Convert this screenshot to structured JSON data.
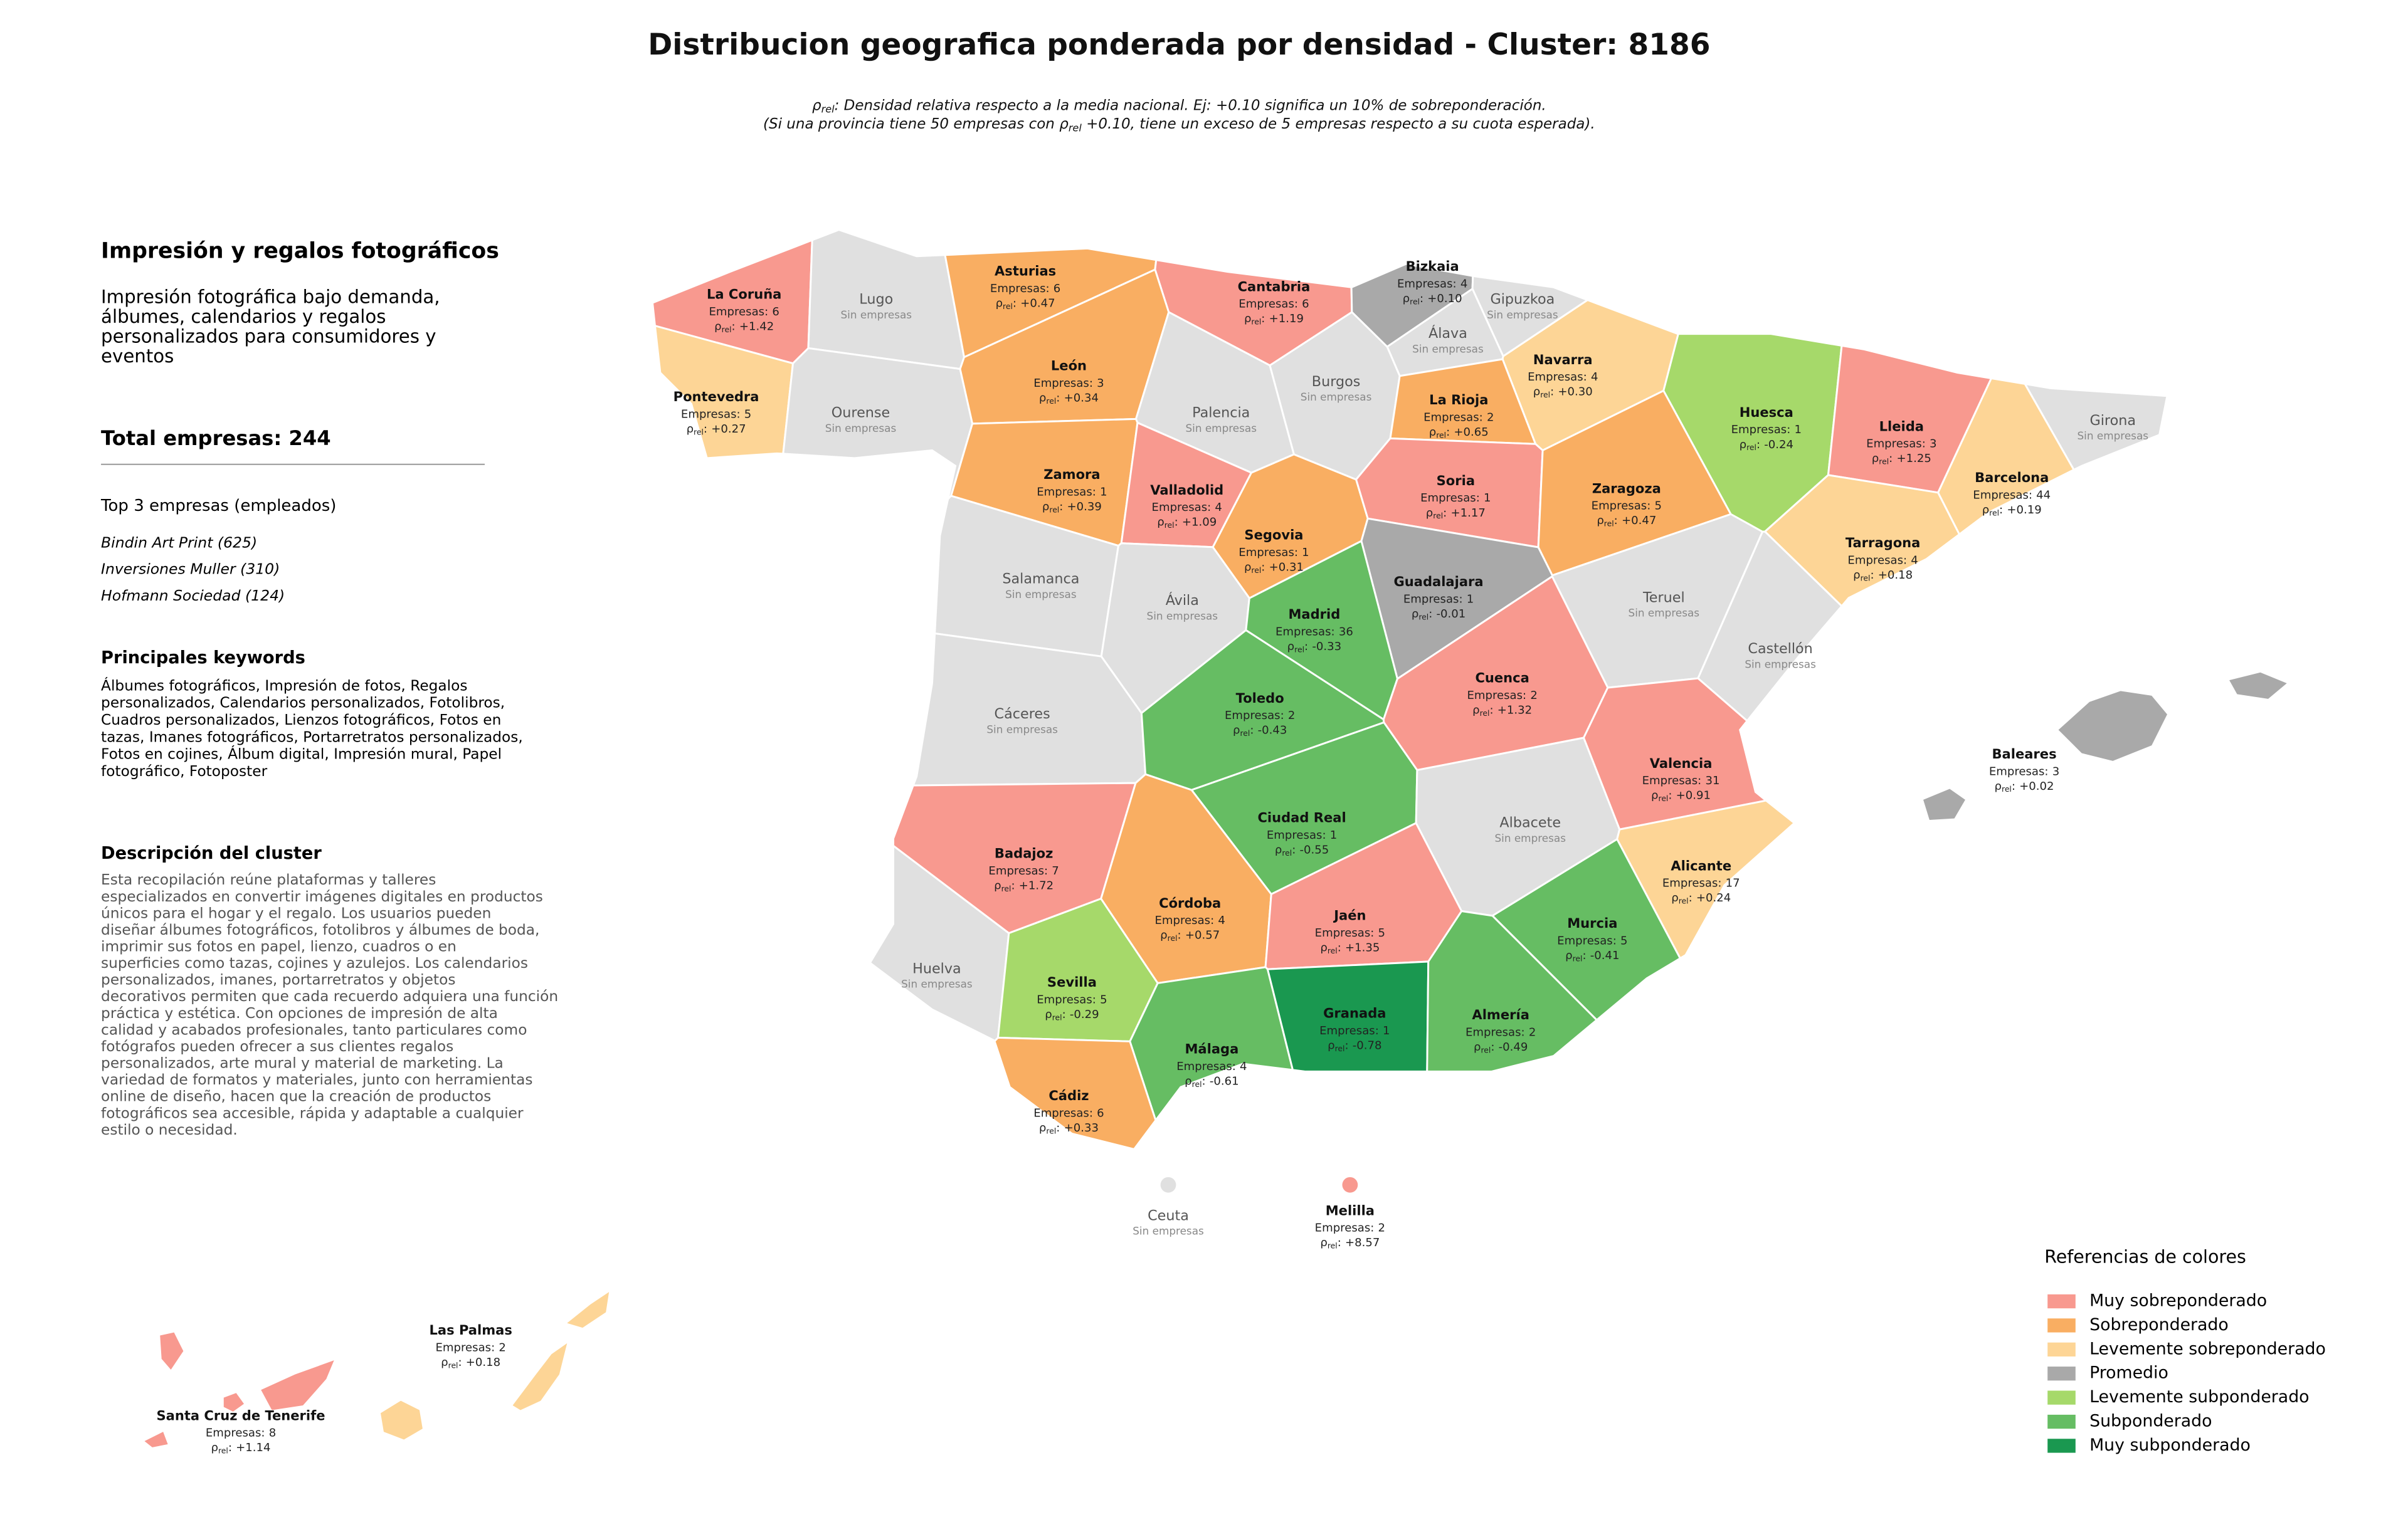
{
  "title": "Distribucion geografica ponderada por densidad - Cluster: 8186",
  "subtitle": [
    {
      "pre": "ρ",
      "sub": "rel",
      "post": ": Densidad relativa respecto a la media nacional. Ej: +0.10 significa un 10% de sobreponderación."
    },
    {
      "pre": "(Si una provincia tiene 50 empresas con ρ",
      "sub": "rel",
      "post": " +0.10, tiene un exceso de 5 empresas respecto a su cuota esperada)."
    }
  ],
  "panel": {
    "heading": "Impresión y regalos fotográficos",
    "description": [
      "Impresión fotográfica bajo demanda,",
      "álbumes, calendarios y regalos",
      "personalizados para consumidores y",
      "eventos"
    ],
    "total": "Total empresas: 244",
    "top_heading": "Top 3 empresas (empleados)",
    "top": [
      "Bindin Art Print (625)",
      "Inversiones Muller (310)",
      "Hofmann Sociedad (124)"
    ],
    "keywords_heading": "Principales keywords",
    "keywords": [
      "Álbumes fotográficos, Impresión de fotos, Regalos",
      "personalizados, Calendarios personalizados, Fotolibros,",
      "Cuadros personalizados, Lienzos fotográficos, Fotos en",
      "tazas, Imanes fotográficos, Portarretratos personalizados,",
      "Fotos en cojines, Álbum digital, Impresión mural, Papel",
      "fotográfico, Fotoposter"
    ],
    "cluster_heading": "Descripción del cluster",
    "cluster_description": [
      "Esta recopilación reúne plataformas y talleres",
      "especializados en convertir imágenes digitales en productos",
      "únicos para el hogar y el regalo. Los usuarios pueden",
      "diseñar álbumes fotográficos, fotolibros y álbumes de boda,",
      "imprimir sus fotos en papel, lienzo, cuadros o en",
      "superficies como tazas, cojines y azulejos. Los calendarios",
      "personalizados, imanes, portarretratos y objetos",
      "decorativos permiten que cada recuerdo adquiera una función",
      "práctica y estética. Con opciones de impresión de alta",
      "calidad y acabados profesionales, tanto particulares como",
      "fotógrafos pueden ofrecer a sus clientes regalos",
      "personalizados, arte mural y material de marketing. La",
      "variedad de formatos y materiales, junto con herramientas",
      "online de diseño, hacen que la creación de productos",
      "fotográficos sea accesible, rápida y adaptable a cualquier",
      "estilo o necesidad."
    ]
  },
  "labels": {
    "empresas": "Empresas:",
    "rho": "ρ",
    "rho_sub": "rel",
    "colon": ":",
    "none": "Sin empresas"
  },
  "provinces": [
    {
      "name": "La Coruña",
      "color": "#f8998f",
      "empresas": 6,
      "rho": 1.42,
      "rho_label": "+1.42"
    },
    {
      "name": "Lugo",
      "color": "#e0e0e0"
    },
    {
      "name": "Asturias",
      "color": "#f9ae62",
      "empresas": 6,
      "rho": 0.47,
      "rho_label": "+0.47"
    },
    {
      "name": "Cantabria",
      "color": "#f8998f",
      "empresas": 6,
      "rho": 1.19,
      "rho_label": "+1.19"
    },
    {
      "name": "Bizkaia",
      "color": "#a9a9a9",
      "empresas": 4,
      "rho": 0.1,
      "rho_label": "+0.10"
    },
    {
      "name": "Gipuzkoa",
      "color": "#e0e0e0"
    },
    {
      "name": "Álava",
      "color": "#e0e0e0"
    },
    {
      "name": "Navarra",
      "color": "#fdd596",
      "empresas": 4,
      "rho": 0.3,
      "rho_label": "+0.30"
    },
    {
      "name": "Pontevedra",
      "color": "#fdd596",
      "empresas": 5,
      "rho": 0.27,
      "rho_label": "+0.27"
    },
    {
      "name": "Ourense",
      "color": "#e0e0e0"
    },
    {
      "name": "León",
      "color": "#f9ae62",
      "empresas": 3,
      "rho": 0.34,
      "rho_label": "+0.34"
    },
    {
      "name": "Palencia",
      "color": "#e0e0e0"
    },
    {
      "name": "Burgos",
      "color": "#e0e0e0"
    },
    {
      "name": "La Rioja",
      "color": "#f9ae62",
      "empresas": 2,
      "rho": 0.65,
      "rho_label": "+0.65"
    },
    {
      "name": "Huesca",
      "color": "#a6d96a",
      "empresas": 1,
      "rho": -0.24,
      "rho_label": "-0.24"
    },
    {
      "name": "Lleida",
      "color": "#f8998f",
      "empresas": 3,
      "rho": 1.25,
      "rho_label": "+1.25"
    },
    {
      "name": "Girona",
      "color": "#e0e0e0"
    },
    {
      "name": "Barcelona",
      "color": "#fdd596",
      "empresas": 44,
      "rho": 0.19,
      "rho_label": "+0.19"
    },
    {
      "name": "Zamora",
      "color": "#f9ae62",
      "empresas": 1,
      "rho": 0.39,
      "rho_label": "+0.39"
    },
    {
      "name": "Valladolid",
      "color": "#f8998f",
      "empresas": 4,
      "rho": 1.09,
      "rho_label": "+1.09"
    },
    {
      "name": "Soria",
      "color": "#f8998f",
      "empresas": 1,
      "rho": 1.17,
      "rho_label": "+1.17"
    },
    {
      "name": "Zaragoza",
      "color": "#f9ae62",
      "empresas": 5,
      "rho": 0.47,
      "rho_label": "+0.47"
    },
    {
      "name": "Segovia",
      "color": "#f9ae62",
      "empresas": 1,
      "rho": 0.31,
      "rho_label": "+0.31"
    },
    {
      "name": "Tarragona",
      "color": "#fdd596",
      "empresas": 4,
      "rho": 0.18,
      "rho_label": "+0.18"
    },
    {
      "name": "Salamanca",
      "color": "#e0e0e0"
    },
    {
      "name": "Ávila",
      "color": "#e0e0e0"
    },
    {
      "name": "Guadalajara",
      "color": "#a9a9a9",
      "empresas": 1,
      "rho": -0.01,
      "rho_label": "-0.01"
    },
    {
      "name": "Madrid",
      "color": "#66bd63",
      "empresas": 36,
      "rho": -0.33,
      "rho_label": "-0.33"
    },
    {
      "name": "Teruel",
      "color": "#e0e0e0"
    },
    {
      "name": "Castellón",
      "color": "#e0e0e0"
    },
    {
      "name": "Cáceres",
      "color": "#e0e0e0"
    },
    {
      "name": "Toledo",
      "color": "#66bd63",
      "empresas": 2,
      "rho": -0.43,
      "rho_label": "-0.43"
    },
    {
      "name": "Cuenca",
      "color": "#f8998f",
      "empresas": 2,
      "rho": 1.32,
      "rho_label": "+1.32"
    },
    {
      "name": "Valencia",
      "color": "#f8998f",
      "empresas": 31,
      "rho": 0.91,
      "rho_label": "+0.91"
    },
    {
      "name": "Badajoz",
      "color": "#f8998f",
      "empresas": 7,
      "rho": 1.72,
      "rho_label": "+1.72"
    },
    {
      "name": "Ciudad Real",
      "color": "#66bd63",
      "empresas": 1,
      "rho": -0.55,
      "rho_label": "-0.55"
    },
    {
      "name": "Albacete",
      "color": "#e0e0e0"
    },
    {
      "name": "Alicante",
      "color": "#fdd596",
      "empresas": 17,
      "rho": 0.24,
      "rho_label": "+0.24"
    },
    {
      "name": "Córdoba",
      "color": "#f9ae62",
      "empresas": 4,
      "rho": 0.57,
      "rho_label": "+0.57"
    },
    {
      "name": "Jaén",
      "color": "#f8998f",
      "empresas": 5,
      "rho": 1.35,
      "rho_label": "+1.35"
    },
    {
      "name": "Murcia",
      "color": "#66bd63",
      "empresas": 5,
      "rho": -0.41,
      "rho_label": "-0.41"
    },
    {
      "name": "Huelva",
      "color": "#e0e0e0"
    },
    {
      "name": "Sevilla",
      "color": "#a6d96a",
      "empresas": 5,
      "rho": -0.29,
      "rho_label": "-0.29"
    },
    {
      "name": "Granada",
      "color": "#1a9850",
      "empresas": 1,
      "rho": -0.78,
      "rho_label": "-0.78"
    },
    {
      "name": "Almería",
      "color": "#66bd63",
      "empresas": 2,
      "rho": -0.49,
      "rho_label": "-0.49"
    },
    {
      "name": "Málaga",
      "color": "#66bd63",
      "empresas": 4,
      "rho": -0.61,
      "rho_label": "-0.61"
    },
    {
      "name": "Cádiz",
      "color": "#f9ae62",
      "empresas": 6,
      "rho": 0.33,
      "rho_label": "+0.33"
    },
    {
      "name": "Baleares",
      "color": "#a9a9a9",
      "empresas": 3,
      "rho": 0.02,
      "rho_label": "+0.02"
    },
    {
      "name": "Ceuta",
      "color": "#e0e0e0"
    },
    {
      "name": "Melilla",
      "color": "#f8998f",
      "empresas": 2,
      "rho": 8.57,
      "rho_label": "+8.57"
    },
    {
      "name": "Las Palmas",
      "color": "#fdd596",
      "empresas": 2,
      "rho": 0.18,
      "rho_label": "+0.18"
    },
    {
      "name": "Santa Cruz de Tenerife",
      "color": "#f8998f",
      "empresas": 8,
      "rho": 1.14,
      "rho_label": "+1.14"
    }
  ],
  "legend": {
    "title": "Referencias de colores",
    "items": [
      {
        "name": "Muy sobreponderado",
        "color": "#f8998f"
      },
      {
        "name": "Sobreponderado",
        "color": "#f9ae62"
      },
      {
        "name": "Levemente sobreponderado",
        "color": "#fdd596"
      },
      {
        "name": "Promedio",
        "color": "#a9a9a9"
      },
      {
        "name": "Levemente subponderado",
        "color": "#a6d96a"
      },
      {
        "name": "Subponderado",
        "color": "#66bd63"
      },
      {
        "name": "Muy subponderado",
        "color": "#1a9850"
      }
    ]
  }
}
